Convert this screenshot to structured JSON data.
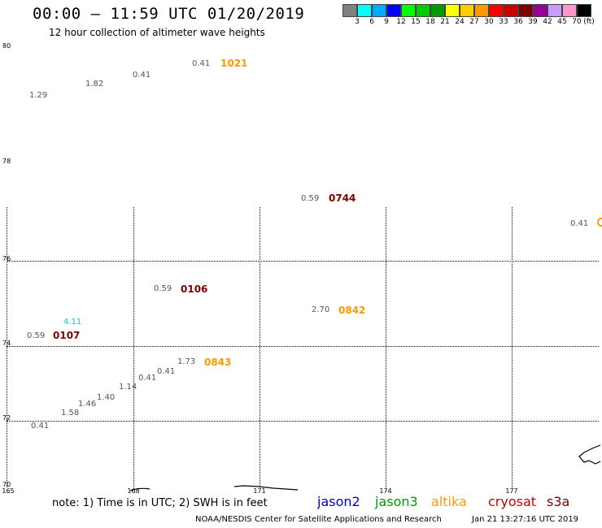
{
  "header": {
    "title": "00:00 – 11:59 UTC 01/20/2019",
    "subtitle": "12 hour collection of altimeter wave heights"
  },
  "color_scale": {
    "unit": "(ft)",
    "colors": [
      "#808080",
      "#00ffff",
      "#00aaff",
      "#0000ff",
      "#00ff00",
      "#00cc00",
      "#009900",
      "#ffff00",
      "#ffcc00",
      "#ff9900",
      "#ff0000",
      "#cc0000",
      "#800000",
      "#990099",
      "#cc99ff",
      "#ff99cc",
      "#000000"
    ],
    "labels": [
      "3",
      "6",
      "9",
      "12",
      "15",
      "18",
      "21",
      "24",
      "27",
      "30",
      "33",
      "36",
      "39",
      "42",
      "45",
      "70"
    ]
  },
  "axes": {
    "lat_labels": [
      "80",
      "78",
      "76",
      "74",
      "72",
      "70"
    ],
    "lon_labels": [
      "165",
      "168",
      "171",
      "174",
      "177"
    ]
  },
  "observations": {
    "wave_heights": [
      "0.41",
      "1.82",
      "0.41",
      "1.29",
      "0.59",
      "0.41",
      "0.59",
      "2.70",
      "4.11",
      "0.59",
      "1.73",
      "0.41",
      "0.41",
      "1.14",
      "1.40",
      "1.46",
      "1.58",
      "0.41"
    ],
    "pass_times": [
      "1021",
      "0744",
      "0106",
      "0842",
      "0107",
      "0843"
    ]
  },
  "legend": {
    "note": "note: 1) Time is in UTC; 2) SWH is in feet",
    "satellites": [
      {
        "name": "jason2",
        "color": "#0000cc"
      },
      {
        "name": "jason3",
        "color": "#009900"
      },
      {
        "name": "altika",
        "color": "#ff9900"
      },
      {
        "name": "cryosat",
        "color": "#cc0000"
      },
      {
        "name": "s3a",
        "color": "#800000"
      }
    ]
  },
  "footer": {
    "credit": "NOAA/NESDIS Center for Satellite Applications and Research",
    "timestamp": "Jan 21 13:27:16 UTC 2019"
  }
}
